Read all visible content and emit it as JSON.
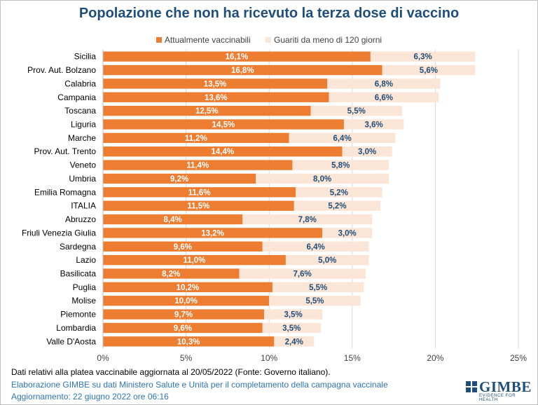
{
  "title": "Popolazione che non ha ricevuto la terza dose di vaccino",
  "colors": {
    "series1": "#ed7d31",
    "series2": "#fbe5d6",
    "title": "#1f4e79",
    "label2": "#1f4e79",
    "note_blue": "#2e75b6"
  },
  "chart_data": {
    "type": "bar",
    "orientation": "horizontal",
    "stacked": true,
    "categories": [
      "Sicilia",
      "Prov. Aut. Bolzano",
      "Calabria",
      "Campania",
      "Toscana",
      "Liguria",
      "Marche",
      "Prov. Aut. Trento",
      "Veneto",
      "Umbria",
      "Emilia Romagna",
      "ITALIA",
      "Abruzzo",
      "Friuli Venezia Giulia",
      "Sardegna",
      "Lazio",
      "Basilicata",
      "Puglia",
      "Molise",
      "Piemonte",
      "Lombardia",
      "Valle D'Aosta"
    ],
    "series": [
      {
        "name": "Attualmente vaccinabili",
        "values": [
          16.1,
          16.8,
          13.5,
          13.6,
          12.5,
          14.5,
          11.2,
          14.4,
          11.4,
          9.2,
          11.6,
          11.5,
          8.4,
          13.2,
          9.6,
          11.0,
          8.2,
          10.2,
          10.0,
          9.7,
          9.6,
          10.3
        ],
        "labels": [
          "16,1%",
          "16,8%",
          "13,5%",
          "13,6%",
          "12,5%",
          "14,5%",
          "11,2%",
          "14,4%",
          "11,4%",
          "9,2%",
          "11,6%",
          "11,5%",
          "8,4%",
          "13,2%",
          "9,6%",
          "11,0%",
          "8,2%",
          "10,2%",
          "10,0%",
          "9,7%",
          "9,6%",
          "10,3%"
        ]
      },
      {
        "name": "Guariti da meno di 120 giorni",
        "values": [
          6.3,
          5.6,
          6.8,
          6.6,
          5.5,
          3.6,
          6.4,
          3.0,
          5.8,
          8.0,
          5.2,
          5.2,
          7.8,
          3.0,
          6.4,
          5.0,
          7.6,
          5.5,
          5.5,
          3.5,
          3.5,
          2.4
        ],
        "labels": [
          "6,3%",
          "5,6%",
          "6,8%",
          "6,6%",
          "5,5%",
          "3,6%",
          "6,4%",
          "3,0%",
          "5,8%",
          "8,0%",
          "5,2%",
          "5,2%",
          "7,8%",
          "3,0%",
          "6,4%",
          "5,0%",
          "7,6%",
          "5,5%",
          "5,5%",
          "3,5%",
          "3,5%",
          "2,4%"
        ]
      }
    ],
    "xlim": [
      0,
      25
    ],
    "xticks": [
      0,
      5,
      10,
      15,
      20,
      25
    ],
    "xtick_labels": [
      "0%",
      "5%",
      "10%",
      "15%",
      "20%",
      "25%"
    ],
    "grid": true,
    "legend_position": "top"
  },
  "notes": {
    "source": "Dati relativi alla platea vaccinabile aggiornata al 20/05/2022 (Fonte: Governo italiano).",
    "elaboration": "Elaborazione GIMBE su dati Ministero Salute e Unità per il completamento della campagna vaccinale",
    "update": "Aggiornamento: 22 giugno 2022 ore 06:16"
  },
  "logo": {
    "name": "GIMBE",
    "tagline": "EVIDENCE FOR HEALTH"
  }
}
